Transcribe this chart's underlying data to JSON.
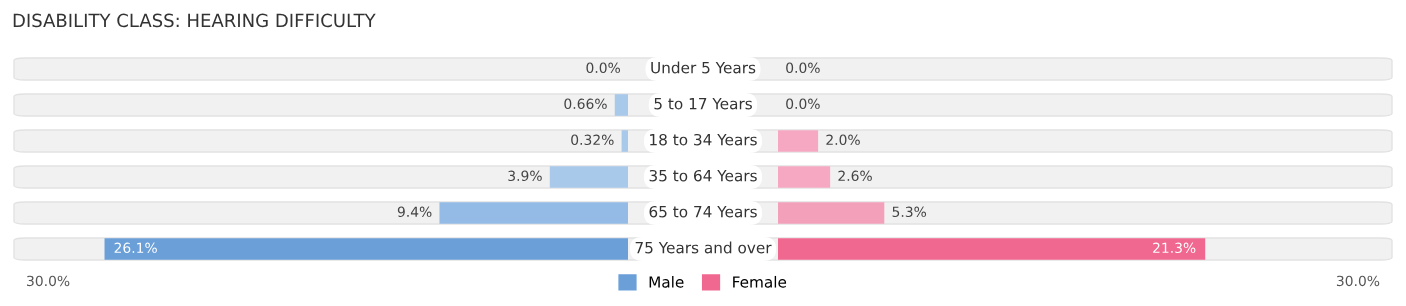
{
  "chart_data": [
    {
      "type": "bar",
      "orientation": "horizontal",
      "title": "DISABILITY CLASS: HEARING DIFFICULTY",
      "categories": [
        "Under 5 Years",
        "5 to 17 Years",
        "18 to 34 Years",
        "35 to 64 Years",
        "65 to 74 Years",
        "75 Years and over"
      ],
      "series": [
        {
          "name": "Male",
          "color": "#6a9fd8",
          "colors": [
            "#a9c9eb",
            "#a9c9eb",
            "#a9c9eb",
            "#a9c9eb",
            "#94bbe6",
            "#6a9fd8"
          ],
          "values": [
            0.0,
            0.66,
            0.32,
            3.9,
            9.4,
            26.1
          ],
          "value_labels": [
            "0.0%",
            "0.66%",
            "0.32%",
            "3.9%",
            "9.4%",
            "26.1%"
          ]
        }
      ],
      "annotations": [
        "30.0%"
      ],
      "legend": "bottom"
    },
    {
      "type": "bar",
      "orientation": "horizontal",
      "categories": [
        null,
        null,
        null,
        null,
        null,
        null
      ],
      "series": [
        {
          "name": "Female",
          "color": "#f06890",
          "colors": [
            "#f6a8c2",
            "#f6a8c2",
            "#f6a8c2",
            "#f6a8c2",
            "#f3a0bb",
            "#f06890"
          ],
          "values": [
            0.0,
            0.0,
            2.0,
            2.6,
            5.3,
            21.3
          ],
          "value_labels": [
            "0.0%",
            "0.0%",
            "2.0%",
            "2.6%",
            "5.3%",
            "21.3%"
          ]
        }
      ],
      "annotations": [
        "30.0%"
      ],
      "legend": "bottom"
    }
  ]
}
